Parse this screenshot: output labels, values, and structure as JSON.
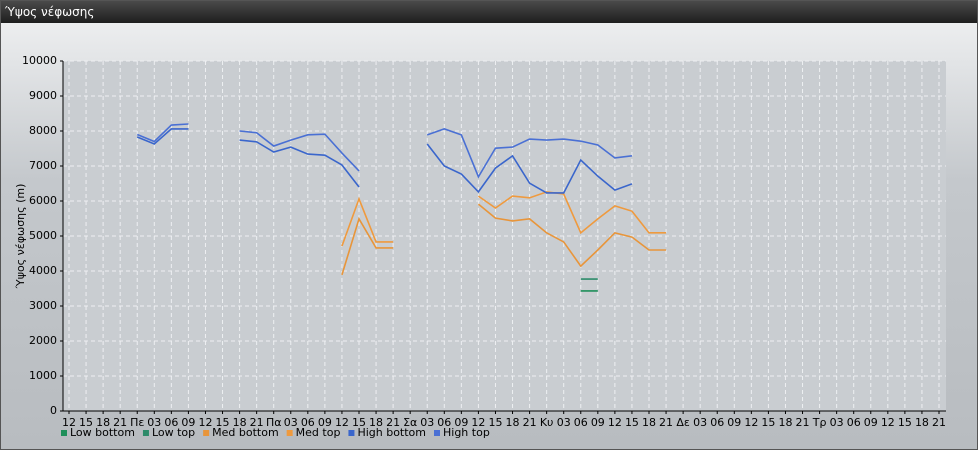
{
  "chart_data": {
    "type": "line",
    "title": "Ύψος νέφωσης",
    "y_label": "Ύψος νέφωσης (m)",
    "categories": [
      "12",
      "15",
      "18",
      "21",
      "Πε",
      "03",
      "06",
      "09",
      "12",
      "15",
      "18",
      "21",
      "Πα",
      "03",
      "06",
      "09",
      "12",
      "15",
      "18",
      "21",
      "Σα",
      "03",
      "06",
      "09",
      "12",
      "15",
      "18",
      "21",
      "Κυ",
      "03",
      "06",
      "09",
      "12",
      "15",
      "18",
      "21",
      "Δε",
      "03",
      "06",
      "09",
      "12",
      "15",
      "18",
      "21",
      "Τρ",
      "03",
      "06",
      "09",
      "12",
      "15",
      "18",
      "21"
    ],
    "ylim": [
      0,
      10000
    ],
    "yticks": [
      0,
      1000,
      2000,
      3000,
      4000,
      5000,
      6000,
      7000,
      8000,
      9000,
      10000
    ],
    "grid": true,
    "series": [
      {
        "name": "Low bottom",
        "color": "#1f8f5a",
        "values": [
          null,
          null,
          null,
          null,
          null,
          null,
          null,
          null,
          null,
          null,
          null,
          null,
          null,
          null,
          null,
          null,
          null,
          null,
          null,
          null,
          null,
          null,
          null,
          null,
          null,
          null,
          null,
          null,
          null,
          null,
          3430,
          3430,
          null,
          null,
          null,
          null,
          null,
          null,
          null,
          null,
          null,
          null,
          null,
          null,
          null,
          null,
          null,
          null,
          null,
          null,
          null,
          null
        ]
      },
      {
        "name": "Low top",
        "color": "#2e8b6a",
        "values": [
          null,
          null,
          null,
          null,
          null,
          null,
          null,
          null,
          null,
          null,
          null,
          null,
          null,
          null,
          null,
          null,
          null,
          null,
          null,
          null,
          null,
          null,
          null,
          null,
          null,
          null,
          null,
          null,
          null,
          null,
          3770,
          3770,
          null,
          null,
          null,
          null,
          null,
          null,
          null,
          null,
          null,
          null,
          null,
          null,
          null,
          null,
          null,
          null,
          null,
          null,
          null,
          null
        ]
      },
      {
        "name": "Med bottom",
        "color": "#e8953a",
        "values": [
          null,
          null,
          null,
          null,
          null,
          null,
          null,
          null,
          null,
          null,
          null,
          null,
          null,
          null,
          null,
          null,
          3890,
          5490,
          4660,
          4660,
          null,
          null,
          null,
          null,
          5910,
          5510,
          5430,
          5490,
          5090,
          4830,
          4140,
          4600,
          5090,
          4970,
          4600,
          4600,
          null,
          null,
          null,
          null,
          null,
          null,
          null,
          null,
          null,
          null,
          null,
          null,
          null,
          null,
          null,
          null
        ]
      },
      {
        "name": "Med top",
        "color": "#ef9a3e",
        "values": [
          null,
          null,
          null,
          null,
          null,
          null,
          null,
          null,
          null,
          null,
          null,
          null,
          null,
          null,
          null,
          null,
          4710,
          6060,
          4830,
          4830,
          null,
          null,
          null,
          null,
          6140,
          5800,
          6140,
          6090,
          6260,
          6200,
          5090,
          5490,
          5860,
          5710,
          5090,
          5090,
          null,
          null,
          null,
          null,
          null,
          null,
          null,
          null,
          null,
          null,
          null,
          null,
          null,
          null,
          null,
          null
        ]
      },
      {
        "name": "High bottom",
        "color": "#3a66cc",
        "values": [
          null,
          null,
          null,
          null,
          7830,
          7630,
          8060,
          8060,
          null,
          null,
          7740,
          7690,
          7400,
          7540,
          7340,
          7310,
          7030,
          6400,
          null,
          null,
          null,
          7630,
          7000,
          6770,
          6260,
          6940,
          7290,
          6510,
          6230,
          6230,
          7170,
          6710,
          6310,
          6490,
          null,
          null,
          null,
          null,
          null,
          null,
          null,
          null,
          null,
          null,
          null,
          null,
          null,
          null,
          null,
          null,
          null,
          null
        ]
      },
      {
        "name": "High top",
        "color": "#4a70d4",
        "values": [
          null,
          null,
          null,
          null,
          7900,
          7700,
          8170,
          8200,
          null,
          null,
          8000,
          7950,
          7570,
          7740,
          7890,
          7910,
          7370,
          6860,
          null,
          null,
          null,
          7890,
          8060,
          7890,
          6690,
          7510,
          7540,
          7770,
          7740,
          7770,
          7710,
          7600,
          7230,
          7290,
          null,
          null,
          null,
          null,
          null,
          null,
          null,
          null,
          null,
          null,
          null,
          null,
          null,
          null,
          null,
          null,
          null,
          null
        ]
      }
    ]
  }
}
